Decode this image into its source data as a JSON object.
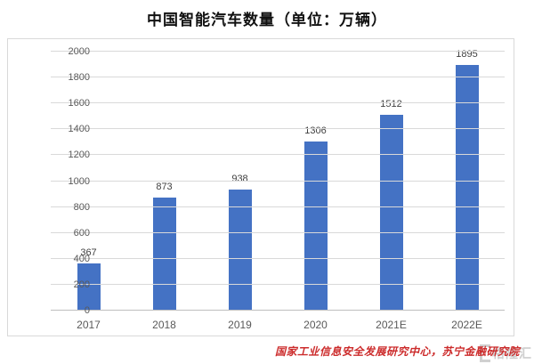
{
  "title": "中国智能汽车数量（单位：万辆）",
  "source": "国家工业信息安全发展研究中心，苏宁金融研究院",
  "watermark": "格隆汇",
  "colors": {
    "bar": "#4472c4",
    "source_text": "#cc2b2b",
    "gridline": "#d9d9d9",
    "axis_label": "#595959",
    "value_label": "#404040"
  },
  "chart_data": {
    "type": "bar",
    "title": "中国智能汽车数量（单位：万辆）",
    "categories": [
      "2017",
      "2018",
      "2019",
      "2020",
      "2021E",
      "2022E"
    ],
    "values": [
      367,
      873,
      938,
      1306,
      1512,
      1895
    ],
    "xlabel": "",
    "ylabel": "",
    "ylim": [
      0,
      2000
    ],
    "ytick_step": 200,
    "yticks": [
      0,
      200,
      400,
      600,
      800,
      1000,
      1200,
      1400,
      1600,
      1800,
      2000
    ],
    "grid": true,
    "legend": false,
    "bar_color": "#4472c4"
  }
}
